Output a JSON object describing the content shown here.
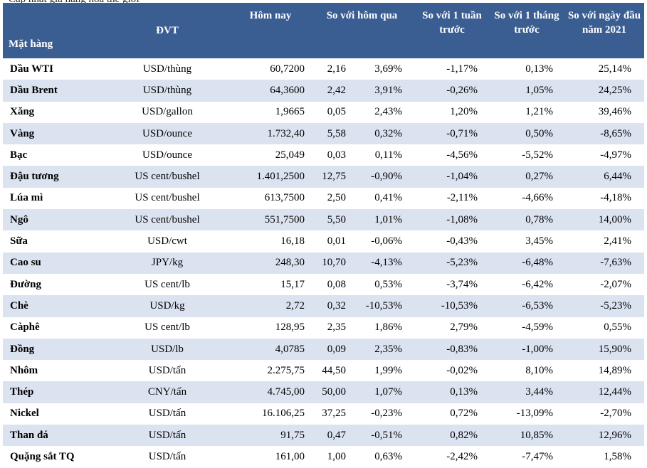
{
  "caption": "Cập nhật giá hàng hóa thế giới",
  "headers": {
    "item": "Mặt hàng",
    "unit": "ĐVT",
    "today": "Hôm nay",
    "vs_yesterday": "So với hôm qua",
    "vs_week": "So với 1 tuần trước",
    "vs_month": "So với 1 tháng trước",
    "vs_year_start": "So với ngày đầu năm 2021"
  },
  "rows": [
    {
      "name": "Dầu WTI",
      "unit": "USD/thùng",
      "today": "60,7200",
      "chg": "2,16",
      "chg_pct": "3,69%",
      "week": "-1,17%",
      "month": "0,13%",
      "ytd": "25,14%"
    },
    {
      "name": "Dầu Brent",
      "unit": "USD/thùng",
      "today": "64,3600",
      "chg": "2,42",
      "chg_pct": "3,91%",
      "week": "-0,26%",
      "month": "1,05%",
      "ytd": "24,25%"
    },
    {
      "name": "Xăng",
      "unit": "USD/gallon",
      "today": "1,9665",
      "chg": "0,05",
      "chg_pct": "2,43%",
      "week": "1,20%",
      "month": "1,21%",
      "ytd": "39,46%"
    },
    {
      "name": "Vàng",
      "unit": "USD/ounce",
      "today": "1.732,40",
      "chg": "5,58",
      "chg_pct": "0,32%",
      "week": "-0,71%",
      "month": "0,50%",
      "ytd": "-8,65%"
    },
    {
      "name": "Bạc",
      "unit": "USD/ounce",
      "today": "25,049",
      "chg": "0,03",
      "chg_pct": "0,11%",
      "week": "-4,56%",
      "month": "-5,52%",
      "ytd": "-4,97%"
    },
    {
      "name": "Đậu tương",
      "unit": "US cent/bushel",
      "today": "1.401,2500",
      "chg": "12,75",
      "chg_pct": "-0,90%",
      "week": "-1,04%",
      "month": "0,27%",
      "ytd": "6,44%"
    },
    {
      "name": "Lúa mì",
      "unit": "US cent/bushel",
      "today": "613,7500",
      "chg": "2,50",
      "chg_pct": "0,41%",
      "week": "-2,11%",
      "month": "-4,66%",
      "ytd": "-4,18%"
    },
    {
      "name": "Ngô",
      "unit": "US cent/bushel",
      "today": "551,7500",
      "chg": "5,50",
      "chg_pct": "1,01%",
      "week": "-1,08%",
      "month": "0,78%",
      "ytd": "14,00%"
    },
    {
      "name": "Sữa",
      "unit": "USD/cwt",
      "today": "16,18",
      "chg": "0,01",
      "chg_pct": "-0,06%",
      "week": "-0,43%",
      "month": "3,45%",
      "ytd": "2,41%"
    },
    {
      "name": "Cao su",
      "unit": "JPY/kg",
      "today": "248,30",
      "chg": "10,70",
      "chg_pct": "-4,13%",
      "week": "-5,23%",
      "month": "-6,48%",
      "ytd": "-7,63%"
    },
    {
      "name": "Đường",
      "unit": "US cent/lb",
      "today": "15,17",
      "chg": "0,08",
      "chg_pct": "0,53%",
      "week": "-3,74%",
      "month": "-6,42%",
      "ytd": "-2,07%"
    },
    {
      "name": "Chè",
      "unit": "USD/kg",
      "today": "2,72",
      "chg": "0,32",
      "chg_pct": "-10,53%",
      "week": "-10,53%",
      "month": "-6,53%",
      "ytd": "-5,23%"
    },
    {
      "name": "Càphê",
      "unit": "US cent/lb",
      "today": "128,95",
      "chg": "2,35",
      "chg_pct": "1,86%",
      "week": "2,79%",
      "month": "-4,59%",
      "ytd": "0,55%"
    },
    {
      "name": "Đồng",
      "unit": "USD/lb",
      "today": "4,0785",
      "chg": "0,09",
      "chg_pct": "2,35%",
      "week": "-0,83%",
      "month": "-1,00%",
      "ytd": "15,90%"
    },
    {
      "name": "Nhôm",
      "unit": "USD/tấn",
      "today": "2.275,75",
      "chg": "44,50",
      "chg_pct": "1,99%",
      "week": "-0,02%",
      "month": "8,10%",
      "ytd": "14,89%"
    },
    {
      "name": "Thép",
      "unit": "CNY/tấn",
      "today": "4.745,00",
      "chg": "50,00",
      "chg_pct": "1,07%",
      "week": "0,13%",
      "month": "3,44%",
      "ytd": "12,44%"
    },
    {
      "name": "Nickel",
      "unit": "USD/tấn",
      "today": "16.106,25",
      "chg": "37,25",
      "chg_pct": "-0,23%",
      "week": "0,72%",
      "month": "-13,09%",
      "ytd": "-2,70%"
    },
    {
      "name": "Than đá",
      "unit": "USD/tấn",
      "today": "91,75",
      "chg": "0,47",
      "chg_pct": "-0,51%",
      "week": "0,82%",
      "month": "10,85%",
      "ytd": "12,96%"
    },
    {
      "name": "Quặng sắt TQ",
      "unit": "USD/tấn",
      "today": "161,00",
      "chg": "1,00",
      "chg_pct": "0,63%",
      "week": "-2,42%",
      "month": "-7,47%",
      "ytd": "1,58%"
    }
  ],
  "colors": {
    "header_bg": "#3a5d92",
    "stripe": "#dbe3f1"
  }
}
